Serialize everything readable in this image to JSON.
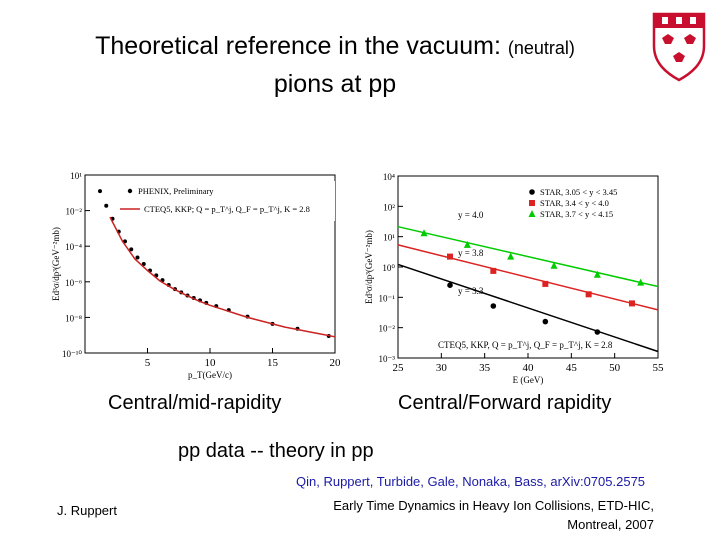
{
  "slide": {
    "title_line1": "Theoretical reference in the vacuum:",
    "title_small": "(neutral)",
    "title_line2": "pions at pp",
    "caption_left": "Central/mid-rapidity",
    "caption_right": "Central/Forward rapidity",
    "subtitle": "pp data -- theory in pp",
    "citation": "Qin, Ruppert, Turbide, Gale, Nonaka, Bass, arXiv:0705.2575",
    "footer_left": "J. Ruppert",
    "footer_right_line1": "Early Time Dynamics in Heavy Ion Collisions, ETD-HIC,",
    "footer_right_line2": "Montreal, 2007",
    "colors": {
      "logo_red": "#c8102e",
      "line_red": "#cc2222",
      "star_green": "#00cc00",
      "star_red": "#dd2222",
      "star_black": "#000000"
    }
  },
  "chart_data": [
    {
      "type": "scatter",
      "xlabel": "p_T(GeV/c)",
      "ylabel": "Ed³σ/dp³(GeV⁻²mb)",
      "xlim": [
        0,
        20
      ],
      "ylim_log10": [
        -10,
        1
      ],
      "x_ticks": [
        "5",
        "10",
        "15",
        "20"
      ],
      "y_ticks": [
        "10¹",
        "10⁻²",
        "10⁻⁴",
        "10⁻⁶",
        "10⁻⁸",
        "10⁻¹⁰"
      ],
      "legend": [
        "PHENIX, Preliminary",
        "CTEQ5, KKP; Q = p_T^j, Q_F = p_T^j, K = 2.8"
      ],
      "series": [
        {
          "name": "PHENIX, Preliminary",
          "mark": "dot",
          "x": [
            1.2,
            1.7,
            2.2,
            2.7,
            3.2,
            3.7,
            4.2,
            4.7,
            5.2,
            5.7,
            6.2,
            6.7,
            7.2,
            7.7,
            8.2,
            8.7,
            9.2,
            9.7,
            10.5,
            11.5,
            13,
            15,
            17,
            19.5
          ],
          "log10y": [
            0.0,
            -0.9,
            -1.7,
            -2.5,
            -3.1,
            -3.6,
            -4.1,
            -4.5,
            -4.9,
            -5.2,
            -5.5,
            -5.8,
            -6.05,
            -6.25,
            -6.45,
            -6.6,
            -6.75,
            -6.9,
            -7.1,
            -7.35,
            -7.75,
            -8.2,
            -8.5,
            -8.95
          ]
        },
        {
          "name": "CTEQ5, KKP; Q = p_T^j, Q_F = p_T^j, K = 2.8",
          "mark": "line",
          "x": [
            2,
            3,
            4,
            5,
            6,
            7,
            8,
            9,
            10,
            11,
            12,
            13,
            14,
            15,
            16,
            17,
            18,
            19,
            20
          ],
          "log10y": [
            -1.6,
            -3.1,
            -4.2,
            -4.9,
            -5.55,
            -6.0,
            -6.4,
            -6.75,
            -7.05,
            -7.3,
            -7.55,
            -7.8,
            -8.0,
            -8.2,
            -8.4,
            -8.55,
            -8.7,
            -8.85,
            -9.0
          ]
        }
      ]
    },
    {
      "type": "scatter",
      "xlabel": "E (GeV)",
      "ylabel": "Ed³σ/dp³(GeV⁻²mb)",
      "xlim": [
        25,
        55
      ],
      "ylim_log10": [
        -3,
        4
      ],
      "x_ticks": [
        "25",
        "30",
        "35",
        "40",
        "45",
        "50",
        "55"
      ],
      "y_ticks": [
        "10⁴",
        "10²",
        "10¹",
        "10⁰",
        "10⁻¹",
        "10⁻²",
        "10⁻³"
      ],
      "legend": [
        "STAR, 3.05 < y < 3.45",
        "STAR, 3.4 < y < 4.0",
        "STAR, 3.7 < y < 4.15"
      ],
      "annotations": [
        "y = 4.0",
        "y = 3.8",
        "y = 3.3",
        "CTEQ5, KKP, Q = p_T^j, Q_F = p_T^j, K = 2.8"
      ],
      "series": [
        {
          "name": "STAR, 3.05 < y < 3.45",
          "color": "#000000",
          "mark": "circle",
          "x": [
            31,
            36,
            42,
            48
          ],
          "log10y": [
            -0.2,
            -1.0,
            -1.6,
            -2.0
          ]
        },
        {
          "name": "STAR, 3.4 < y < 4.0",
          "color": "#dd2222",
          "mark": "square",
          "x": [
            31,
            36,
            42,
            47,
            52
          ],
          "log10y": [
            0.9,
            0.35,
            -0.15,
            -0.55,
            -0.9
          ]
        },
        {
          "name": "STAR, 3.7 < y < 4.15",
          "color": "#00cc00",
          "mark": "triangle",
          "x": [
            28,
            33,
            38,
            43,
            48,
            53
          ],
          "log10y": [
            1.8,
            1.35,
            0.9,
            0.55,
            0.2,
            -0.1
          ]
        },
        {
          "name": "y = 4.0",
          "color": "#00cc00",
          "mark": "line",
          "x": [
            25,
            55
          ],
          "log10y": [
            2.05,
            -0.25
          ]
        },
        {
          "name": "y = 3.8",
          "color": "#dd2222",
          "mark": "line",
          "x": [
            25,
            55
          ],
          "log10y": [
            1.35,
            -1.15
          ]
        },
        {
          "name": "y = 3.3",
          "color": "#000000",
          "mark": "line",
          "x": [
            25,
            55
          ],
          "log10y": [
            0.6,
            -2.75
          ]
        }
      ]
    }
  ]
}
